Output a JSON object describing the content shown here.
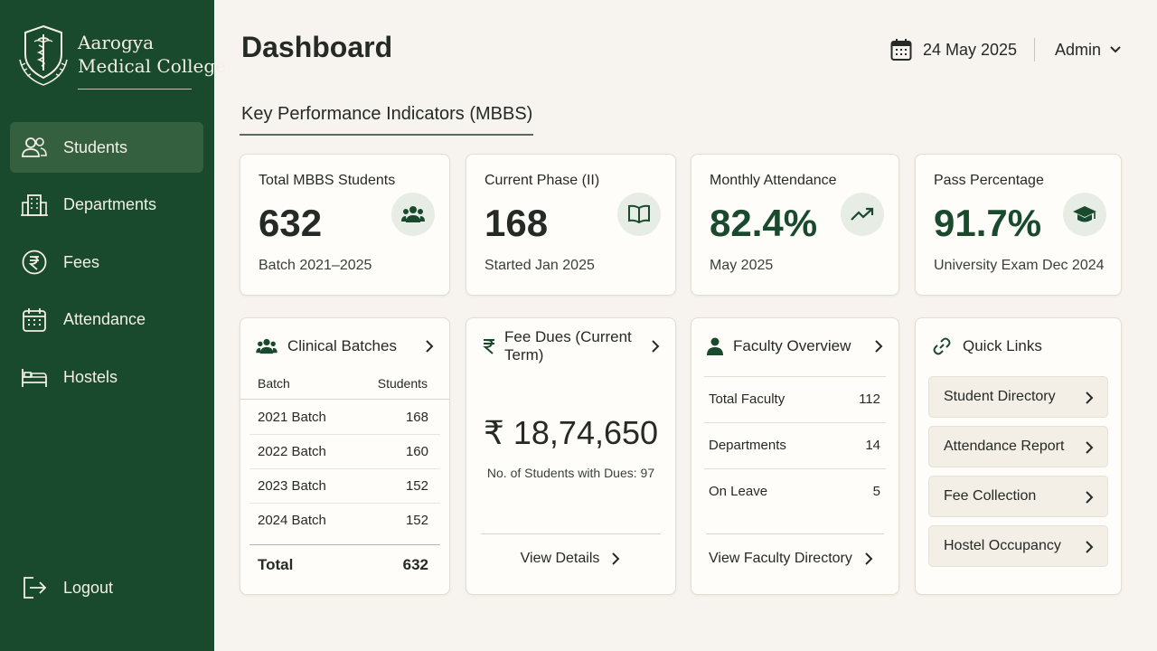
{
  "brand": {
    "line1": "Aarogya",
    "line2": "Medical College"
  },
  "sidebar": {
    "items": [
      {
        "label": "Students",
        "icon": "users-icon",
        "active": true
      },
      {
        "label": "Departments",
        "icon": "building-icon",
        "active": false
      },
      {
        "label": "Fees",
        "icon": "rupee-circle-icon",
        "active": false
      },
      {
        "label": "Attendance",
        "icon": "calendar-icon",
        "active": false
      },
      {
        "label": "Hostels",
        "icon": "bed-icon",
        "active": false
      }
    ],
    "logout_label": "Logout"
  },
  "header": {
    "title": "Dashboard",
    "date": "24 May 2025",
    "user": "Admin"
  },
  "section_title": "Key Performance Indicators (MBBS)",
  "kpis": [
    {
      "label": "Total MBBS Students",
      "value": "632",
      "sub": "Batch 2021–2025",
      "icon": "users-icon"
    },
    {
      "label": "Current Phase (II)",
      "value": "168",
      "sub": "Started Jan 2025",
      "icon": "book-icon"
    },
    {
      "label": "Monthly Attendance",
      "value": "82.4%",
      "sub": "May 2025",
      "icon": "trend-up-icon"
    },
    {
      "label": "Pass Percentage",
      "value": "91.7%",
      "sub": "University Exam Dec 2024",
      "icon": "graduation-cap-icon"
    }
  ],
  "clinical": {
    "title": "Clinical Batches",
    "col_batch": "Batch",
    "col_students": "Students",
    "rows": [
      {
        "batch": "2021 Batch",
        "students": "168"
      },
      {
        "batch": "2022 Batch",
        "students": "160"
      },
      {
        "batch": "2023 Batch",
        "students": "152"
      },
      {
        "batch": "2024 Batch",
        "students": "152"
      }
    ],
    "total_label": "Total",
    "total_value": "632"
  },
  "fees": {
    "title": "Fee Dues (Current Term)",
    "amount": "₹ 18,74,650",
    "sub": "No. of Students with Dues: 97",
    "link": "View Details"
  },
  "faculty": {
    "title": "Faculty Overview",
    "rows": [
      {
        "label": "Total Faculty",
        "value": "112"
      },
      {
        "label": "Departments",
        "value": "14"
      },
      {
        "label": "On Leave",
        "value": "5"
      }
    ],
    "link": "View Faculty Directory"
  },
  "quick_links": {
    "title": "Quick Links",
    "items": [
      "Student Directory",
      "Attendance Report",
      "Fee Collection",
      "Hostel Occupancy"
    ]
  },
  "colors": {
    "sidebar": "#1a4a2e",
    "accent": "#1a4a2e",
    "background": "#f7f3ee",
    "card": "#fffdfa"
  }
}
